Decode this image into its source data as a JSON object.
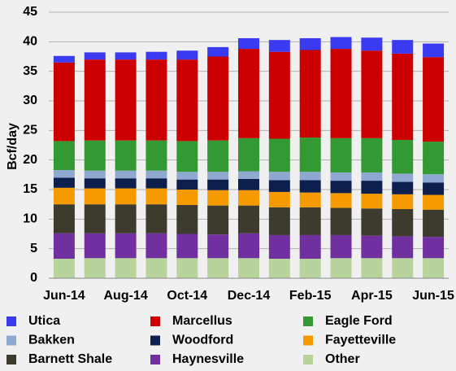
{
  "chart_data": {
    "type": "stacked_bar",
    "y_label": "Bcf/day",
    "categories": [
      "Jun-14",
      null,
      "Aug-14",
      null,
      "Oct-14",
      null,
      "Dec-14",
      null,
      "Feb-15",
      null,
      "Apr-15",
      null,
      "Jun-15"
    ],
    "series": [
      {
        "name": "Utica",
        "color": "#3a3af0",
        "values": [
          1.1,
          1.2,
          1.2,
          1.3,
          1.5,
          1.6,
          1.8,
          2.0,
          2.0,
          2.0,
          2.2,
          2.3,
          2.3
        ]
      },
      {
        "name": "Marcellus",
        "color": "#cc0000",
        "values": [
          13.3,
          13.7,
          13.7,
          13.7,
          13.8,
          14.2,
          15.1,
          14.7,
          14.8,
          15.1,
          14.8,
          14.6,
          14.3
        ]
      },
      {
        "name": "Eagle Ford",
        "color": "#339933",
        "values": [
          4.9,
          5.1,
          5.1,
          5.1,
          5.2,
          5.3,
          5.6,
          5.6,
          5.8,
          5.8,
          5.8,
          5.7,
          5.5
        ]
      },
      {
        "name": "Bakken",
        "color": "#8fa8cf",
        "values": [
          1.3,
          1.3,
          1.3,
          1.3,
          1.3,
          1.3,
          1.3,
          1.4,
          1.4,
          1.4,
          1.4,
          1.4,
          1.4
        ]
      },
      {
        "name": "Woodford",
        "color": "#0d1f4d",
        "values": [
          1.7,
          1.7,
          1.7,
          1.7,
          1.7,
          1.8,
          1.9,
          2.0,
          2.1,
          2.1,
          2.2,
          2.1,
          2.1
        ]
      },
      {
        "name": "Fayetteville",
        "color": "#f59a00",
        "values": [
          2.8,
          2.7,
          2.7,
          2.7,
          2.6,
          2.6,
          2.6,
          2.6,
          2.5,
          2.5,
          2.5,
          2.5,
          2.5
        ]
      },
      {
        "name": "Barnett Shale",
        "color": "#3d3a2e",
        "values": [
          4.9,
          4.9,
          4.9,
          4.9,
          4.9,
          4.9,
          4.7,
          4.7,
          4.7,
          4.6,
          4.6,
          4.6,
          4.6
        ]
      },
      {
        "name": "Haynesville",
        "color": "#7030a0",
        "values": [
          4.3,
          4.2,
          4.2,
          4.2,
          4.1,
          4.0,
          4.2,
          4.0,
          4.0,
          3.9,
          3.8,
          3.7,
          3.6
        ]
      },
      {
        "name": "Other",
        "color": "#b8d49c",
        "values": [
          3.3,
          3.4,
          3.4,
          3.4,
          3.4,
          3.4,
          3.4,
          3.3,
          3.3,
          3.4,
          3.4,
          3.4,
          3.4
        ]
      }
    ],
    "ylim": [
      0,
      45
    ],
    "yticks": [
      0,
      5,
      10,
      15,
      20,
      25,
      30,
      35,
      40,
      45
    ],
    "grid": true
  }
}
